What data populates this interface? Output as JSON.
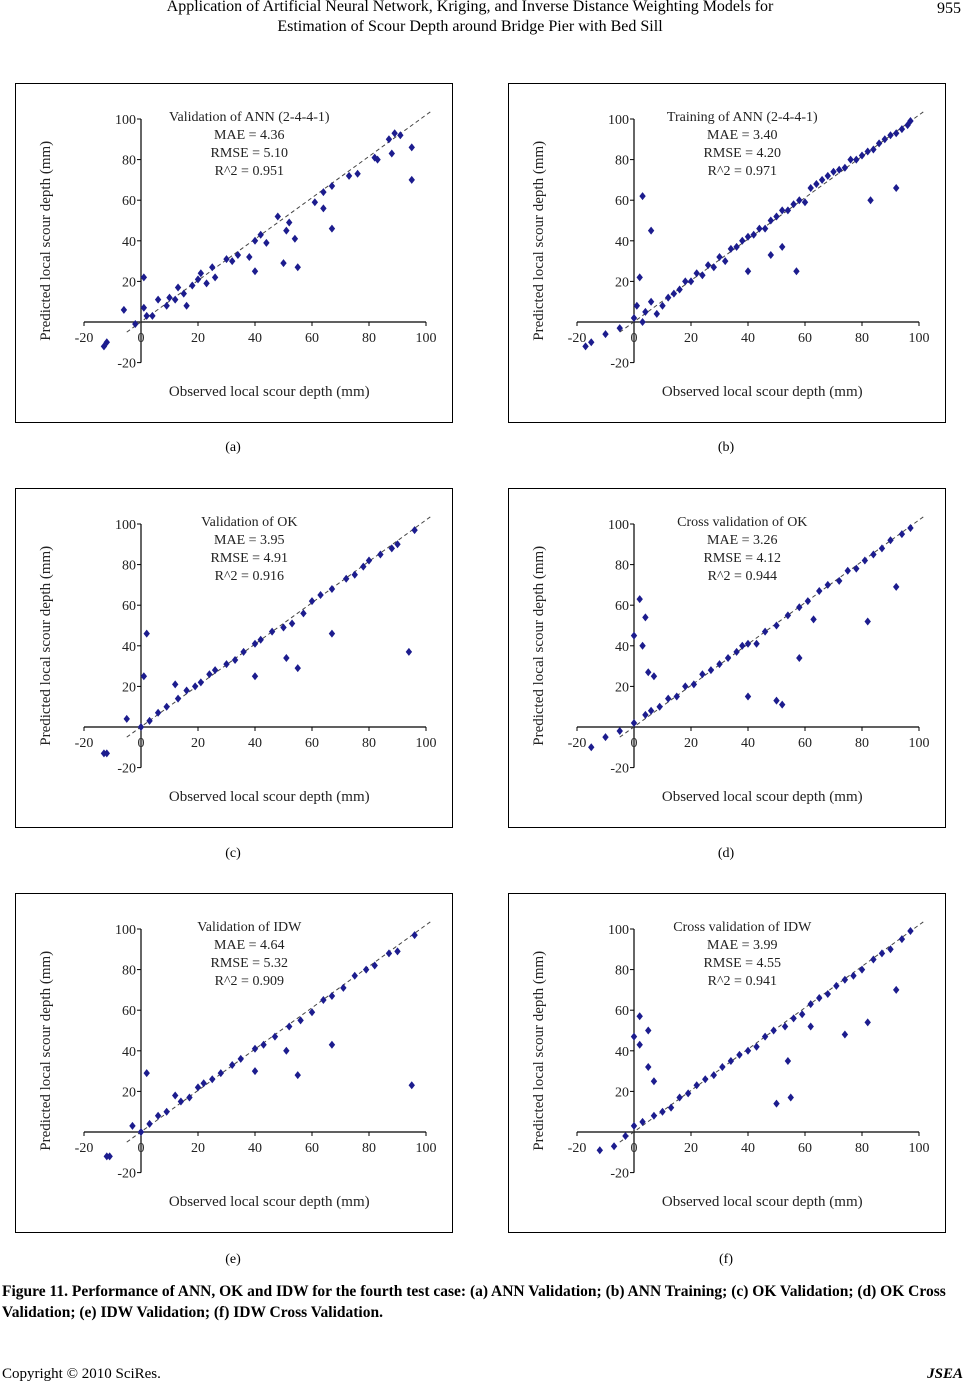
{
  "header": {
    "title_line1": "Application of Artificial Neural Network, Kriging, and Inverse Distance Weighting Models for",
    "title_line2": "Estimation of Scour Depth around Bridge Pier with Bed Sill",
    "page_number": "955"
  },
  "figure_caption": "Figure 11. Performance of ANN, OK and IDW for the fourth test case: (a) ANN Validation; (b) ANN Training; (c) OK Validation; (d) OK Cross Validation; (e) IDW Validation; (f) IDW Cross Validation.",
  "footer": {
    "copyright": "Copyright © 2010 SciRes.",
    "journal": "JSEA"
  },
  "colors": {
    "marker": "#1c1c8e",
    "line": "#444444"
  },
  "chart_data": [
    {
      "panel_label": "(a)",
      "type": "scatter",
      "title": "Validation of ANN (2-4-4-1)",
      "stats": [
        "MAE = 4.36",
        "RMSE = 5.10",
        "R^2 = 0.951"
      ],
      "xlabel": "Observed local scour depth (mm)",
      "ylabel": "Predicted local scour depth (mm)",
      "xlim": [
        -20,
        100
      ],
      "ylim": [
        -20,
        100
      ],
      "xticks": [
        -20,
        0,
        20,
        40,
        60,
        80,
        100
      ],
      "yticks": [
        -20,
        0,
        20,
        40,
        60,
        80,
        100
      ],
      "reference_line": "y = x (dashed)",
      "marker": "diamond",
      "points": [
        [
          -13,
          -12
        ],
        [
          -12,
          -10
        ],
        [
          -6,
          6
        ],
        [
          -2,
          -1
        ],
        [
          1,
          22
        ],
        [
          1,
          7
        ],
        [
          2,
          3
        ],
        [
          4,
          3
        ],
        [
          6,
          11
        ],
        [
          9,
          8
        ],
        [
          10,
          12
        ],
        [
          12,
          11
        ],
        [
          13,
          17
        ],
        [
          15,
          14
        ],
        [
          16,
          8
        ],
        [
          18,
          18
        ],
        [
          20,
          21
        ],
        [
          21,
          24
        ],
        [
          23,
          19
        ],
        [
          25,
          27
        ],
        [
          26,
          22
        ],
        [
          30,
          31
        ],
        [
          32,
          30
        ],
        [
          34,
          33
        ],
        [
          38,
          32
        ],
        [
          40,
          25
        ],
        [
          40,
          40
        ],
        [
          42,
          43
        ],
        [
          44,
          39
        ],
        [
          48,
          52
        ],
        [
          50,
          29
        ],
        [
          51,
          45
        ],
        [
          52,
          49
        ],
        [
          54,
          41
        ],
        [
          55,
          27
        ],
        [
          61,
          59
        ],
        [
          64,
          56
        ],
        [
          64,
          64
        ],
        [
          67,
          46
        ],
        [
          67,
          67
        ],
        [
          73,
          72
        ],
        [
          76,
          73
        ],
        [
          82,
          81
        ],
        [
          83,
          80
        ],
        [
          87,
          90
        ],
        [
          88,
          83
        ],
        [
          89,
          93
        ],
        [
          91,
          92
        ],
        [
          95,
          86
        ],
        [
          95,
          70
        ]
      ]
    },
    {
      "panel_label": "(b)",
      "type": "scatter",
      "title": "Training of ANN (2-4-4-1)",
      "stats": [
        "MAE = 3.40",
        "RMSE = 4.20",
        "R^2 = 0.971"
      ],
      "xlabel": "Observed local scour depth (mm)",
      "ylabel": "Predicted local scour depth (mm)",
      "xlim": [
        -20,
        100
      ],
      "ylim": [
        -20,
        100
      ],
      "xticks": [
        -20,
        0,
        20,
        40,
        60,
        80,
        100
      ],
      "yticks": [
        -20,
        0,
        20,
        40,
        60,
        80,
        100
      ],
      "reference_line": "y = x (dashed)",
      "marker": "diamond",
      "points": [
        [
          -17,
          -12
        ],
        [
          -15,
          -10
        ],
        [
          -10,
          -6
        ],
        [
          -5,
          -3
        ],
        [
          0,
          2
        ],
        [
          1,
          8
        ],
        [
          2,
          22
        ],
        [
          3,
          62
        ],
        [
          3,
          0
        ],
        [
          4,
          5
        ],
        [
          6,
          45
        ],
        [
          6,
          10
        ],
        [
          8,
          4
        ],
        [
          10,
          8
        ],
        [
          12,
          12
        ],
        [
          14,
          14
        ],
        [
          16,
          16
        ],
        [
          18,
          20
        ],
        [
          20,
          20
        ],
        [
          22,
          24
        ],
        [
          24,
          23
        ],
        [
          26,
          28
        ],
        [
          28,
          27
        ],
        [
          30,
          32
        ],
        [
          32,
          30
        ],
        [
          34,
          36
        ],
        [
          36,
          37
        ],
        [
          38,
          40
        ],
        [
          40,
          25
        ],
        [
          40,
          42
        ],
        [
          42,
          43
        ],
        [
          44,
          46
        ],
        [
          46,
          46
        ],
        [
          48,
          33
        ],
        [
          48,
          50
        ],
        [
          50,
          52
        ],
        [
          52,
          37
        ],
        [
          52,
          55
        ],
        [
          54,
          55
        ],
        [
          56,
          58
        ],
        [
          57,
          25
        ],
        [
          58,
          60
        ],
        [
          60,
          59
        ],
        [
          62,
          66
        ],
        [
          64,
          68
        ],
        [
          66,
          70
        ],
        [
          68,
          72
        ],
        [
          70,
          74
        ],
        [
          72,
          75
        ],
        [
          74,
          76
        ],
        [
          76,
          80
        ],
        [
          78,
          80
        ],
        [
          80,
          82
        ],
        [
          82,
          84
        ],
        [
          83,
          60
        ],
        [
          84,
          85
        ],
        [
          86,
          88
        ],
        [
          88,
          90
        ],
        [
          90,
          92
        ],
        [
          92,
          66
        ],
        [
          92,
          93
        ],
        [
          94,
          95
        ],
        [
          96,
          97
        ],
        [
          97,
          99
        ]
      ]
    },
    {
      "panel_label": "(c)",
      "type": "scatter",
      "title": "Validation of OK",
      "stats": [
        "MAE = 3.95",
        "RMSE = 4.91",
        "R^2 = 0.916"
      ],
      "xlabel": "Observed local scour depth (mm)",
      "ylabel": "Predicted local scour depth (mm)",
      "xlim": [
        -20,
        100
      ],
      "ylim": [
        -20,
        100
      ],
      "xticks": [
        -20,
        0,
        20,
        40,
        60,
        80,
        100
      ],
      "yticks": [
        -20,
        0,
        20,
        40,
        60,
        80,
        100
      ],
      "reference_line": "y = x (dashed)",
      "marker": "diamond",
      "points": [
        [
          -13,
          -13
        ],
        [
          -12,
          -13
        ],
        [
          -5,
          4
        ],
        [
          0,
          0
        ],
        [
          1,
          25
        ],
        [
          2,
          46
        ],
        [
          3,
          3
        ],
        [
          6,
          7
        ],
        [
          9,
          10
        ],
        [
          12,
          21
        ],
        [
          13,
          14
        ],
        [
          16,
          18
        ],
        [
          19,
          20
        ],
        [
          21,
          22
        ],
        [
          24,
          26
        ],
        [
          26,
          28
        ],
        [
          30,
          31
        ],
        [
          33,
          33
        ],
        [
          36,
          37
        ],
        [
          40,
          25
        ],
        [
          40,
          41
        ],
        [
          42,
          43
        ],
        [
          46,
          47
        ],
        [
          50,
          49
        ],
        [
          51,
          34
        ],
        [
          53,
          51
        ],
        [
          55,
          29
        ],
        [
          57,
          56
        ],
        [
          60,
          62
        ],
        [
          63,
          65
        ],
        [
          67,
          46
        ],
        [
          67,
          68
        ],
        [
          72,
          73
        ],
        [
          75,
          75
        ],
        [
          78,
          79
        ],
        [
          80,
          82
        ],
        [
          84,
          85
        ],
        [
          88,
          88
        ],
        [
          90,
          90
        ],
        [
          94,
          37
        ],
        [
          96,
          97
        ]
      ]
    },
    {
      "panel_label": "(d)",
      "type": "scatter",
      "title": "Cross validation of OK",
      "stats": [
        "MAE = 3.26",
        "RMSE = 4.12",
        "R^2 = 0.944"
      ],
      "xlabel": "Observed local scour depth (mm)",
      "ylabel": "Predicted local scour depth (mm)",
      "xlim": [
        -20,
        100
      ],
      "ylim": [
        -20,
        100
      ],
      "xticks": [
        -20,
        0,
        20,
        40,
        60,
        80,
        100
      ],
      "yticks": [
        -20,
        0,
        20,
        40,
        60,
        80,
        100
      ],
      "reference_line": "y = x (dashed)",
      "marker": "diamond",
      "points": [
        [
          -15,
          -10
        ],
        [
          -10,
          -5
        ],
        [
          -5,
          -2
        ],
        [
          0,
          45
        ],
        [
          0,
          2
        ],
        [
          2,
          63
        ],
        [
          3,
          40
        ],
        [
          4,
          54
        ],
        [
          4,
          6
        ],
        [
          5,
          27
        ],
        [
          7,
          25
        ],
        [
          6,
          8
        ],
        [
          9,
          10
        ],
        [
          12,
          14
        ],
        [
          15,
          15
        ],
        [
          18,
          20
        ],
        [
          21,
          21
        ],
        [
          24,
          26
        ],
        [
          27,
          28
        ],
        [
          30,
          31
        ],
        [
          33,
          34
        ],
        [
          36,
          37
        ],
        [
          38,
          40
        ],
        [
          40,
          15
        ],
        [
          40,
          41
        ],
        [
          43,
          41
        ],
        [
          46,
          47
        ],
        [
          50,
          13
        ],
        [
          50,
          50
        ],
        [
          52,
          11
        ],
        [
          54,
          55
        ],
        [
          58,
          34
        ],
        [
          58,
          59
        ],
        [
          61,
          62
        ],
        [
          63,
          53
        ],
        [
          65,
          67
        ],
        [
          68,
          70
        ],
        [
          72,
          72
        ],
        [
          75,
          77
        ],
        [
          78,
          78
        ],
        [
          81,
          82
        ],
        [
          82,
          52
        ],
        [
          84,
          85
        ],
        [
          87,
          88
        ],
        [
          90,
          92
        ],
        [
          92,
          69
        ],
        [
          94,
          95
        ],
        [
          97,
          98
        ]
      ]
    },
    {
      "panel_label": "(e)",
      "type": "scatter",
      "title": "Validation of IDW",
      "stats": [
        "MAE = 4.64",
        "RMSE = 5.32",
        "R^2 = 0.909"
      ],
      "xlabel": "Observed local scour depth (mm)",
      "ylabel": "Predicted local scour depth (mm)",
      "xlim": [
        -20,
        100
      ],
      "ylim": [
        -20,
        100
      ],
      "xticks": [
        -20,
        0,
        20,
        40,
        60,
        80,
        100
      ],
      "yticks": [
        -20,
        0,
        20,
        40,
        60,
        80,
        100
      ],
      "reference_line": "y = x (dashed)",
      "marker": "diamond",
      "points": [
        [
          -12,
          -12
        ],
        [
          -11,
          -12
        ],
        [
          -3,
          3
        ],
        [
          0,
          0
        ],
        [
          2,
          29
        ],
        [
          3,
          4
        ],
        [
          6,
          8
        ],
        [
          9,
          10
        ],
        [
          12,
          18
        ],
        [
          14,
          15
        ],
        [
          17,
          17
        ],
        [
          20,
          22
        ],
        [
          22,
          24
        ],
        [
          25,
          26
        ],
        [
          28,
          29
        ],
        [
          32,
          33
        ],
        [
          35,
          36
        ],
        [
          40,
          30
        ],
        [
          40,
          41
        ],
        [
          43,
          43
        ],
        [
          47,
          47
        ],
        [
          51,
          40
        ],
        [
          52,
          52
        ],
        [
          55,
          28
        ],
        [
          56,
          55
        ],
        [
          60,
          59
        ],
        [
          64,
          65
        ],
        [
          67,
          43
        ],
        [
          67,
          67
        ],
        [
          71,
          71
        ],
        [
          75,
          77
        ],
        [
          79,
          80
        ],
        [
          82,
          82
        ],
        [
          87,
          88
        ],
        [
          90,
          89
        ],
        [
          95,
          23
        ],
        [
          96,
          97
        ]
      ]
    },
    {
      "panel_label": "(f)",
      "type": "scatter",
      "title": "Cross validation of IDW",
      "stats": [
        "MAE = 3.99",
        "RMSE = 4.55",
        "R^2 = 0.941"
      ],
      "xlabel": "Observed local scour depth (mm)",
      "ylabel": "Predicted local scour depth (mm)",
      "xlim": [
        -20,
        100
      ],
      "ylim": [
        -20,
        100
      ],
      "xticks": [
        -20,
        0,
        20,
        40,
        60,
        80,
        100
      ],
      "yticks": [
        -20,
        0,
        20,
        40,
        60,
        80,
        100
      ],
      "reference_line": "y = x (dashed)",
      "marker": "diamond",
      "points": [
        [
          -12,
          -9
        ],
        [
          -7,
          -7
        ],
        [
          -3,
          -2
        ],
        [
          0,
          47
        ],
        [
          0,
          3
        ],
        [
          2,
          57
        ],
        [
          2,
          43
        ],
        [
          3,
          5
        ],
        [
          5,
          50
        ],
        [
          5,
          32
        ],
        [
          7,
          25
        ],
        [
          7,
          8
        ],
        [
          10,
          10
        ],
        [
          13,
          12
        ],
        [
          16,
          17
        ],
        [
          19,
          19
        ],
        [
          22,
          23
        ],
        [
          25,
          26
        ],
        [
          28,
          28
        ],
        [
          31,
          32
        ],
        [
          34,
          35
        ],
        [
          37,
          38
        ],
        [
          40,
          40
        ],
        [
          43,
          42
        ],
        [
          46,
          47
        ],
        [
          49,
          50
        ],
        [
          50,
          14
        ],
        [
          53,
          52
        ],
        [
          54,
          35
        ],
        [
          55,
          17
        ],
        [
          56,
          56
        ],
        [
          59,
          58
        ],
        [
          62,
          52
        ],
        [
          62,
          63
        ],
        [
          65,
          66
        ],
        [
          68,
          68
        ],
        [
          71,
          72
        ],
        [
          74,
          48
        ],
        [
          74,
          75
        ],
        [
          77,
          77
        ],
        [
          80,
          80
        ],
        [
          82,
          54
        ],
        [
          84,
          85
        ],
        [
          87,
          88
        ],
        [
          90,
          90
        ],
        [
          92,
          70
        ],
        [
          94,
          95
        ],
        [
          97,
          99
        ]
      ]
    }
  ]
}
